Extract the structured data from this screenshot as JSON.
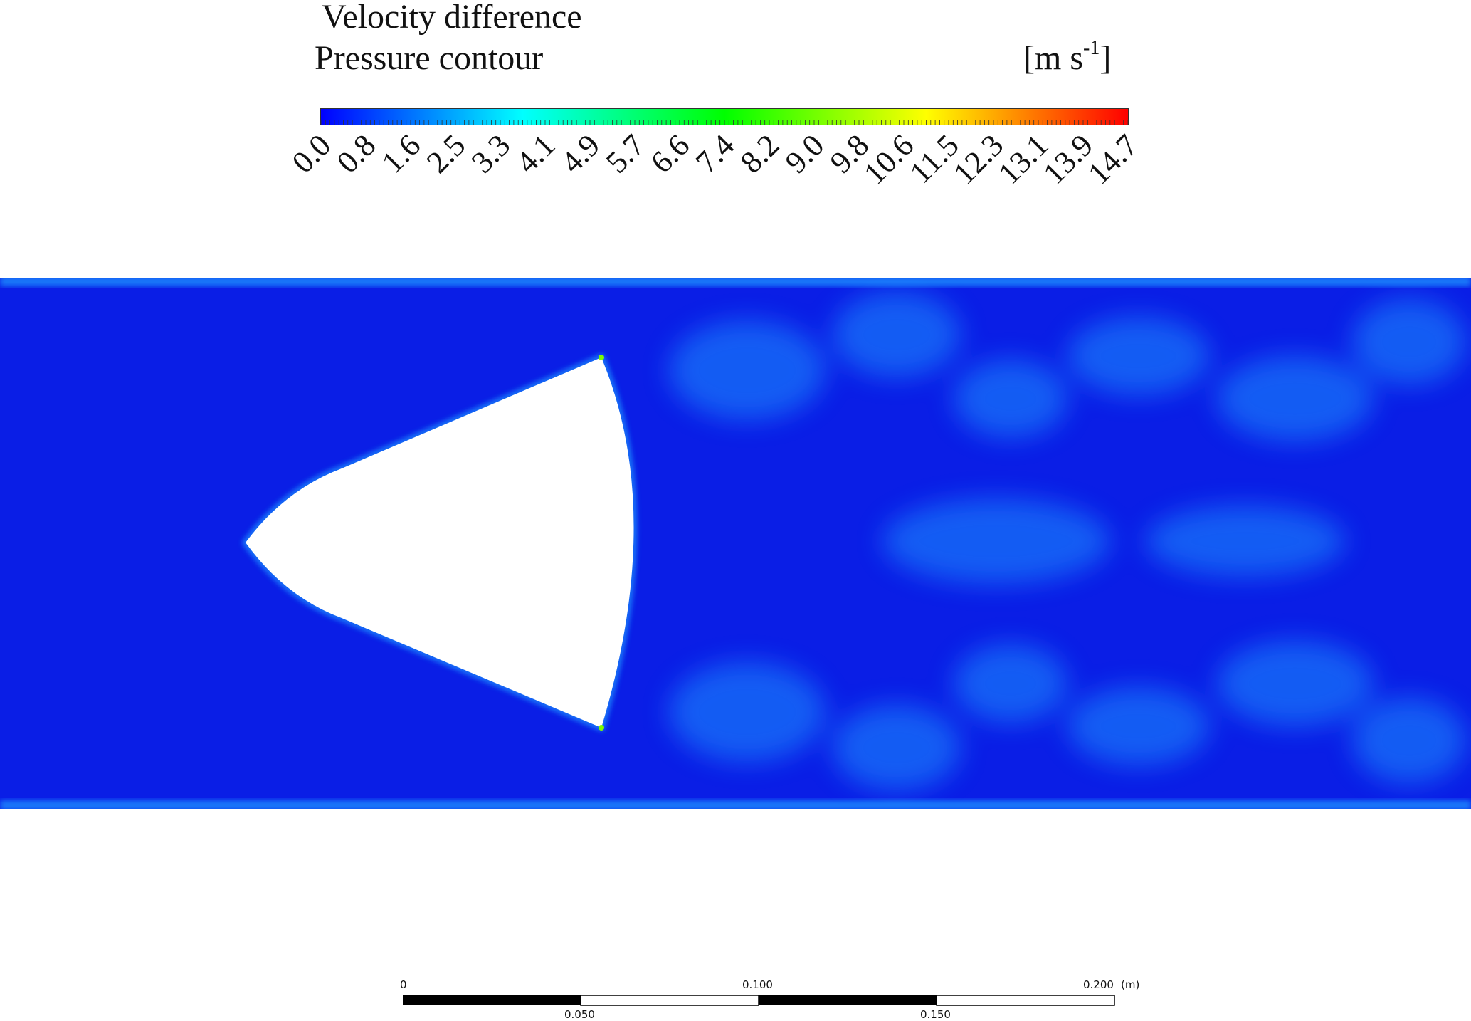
{
  "legend": {
    "title_line1": "Velocity difference",
    "title_line2": "Pressure contour",
    "unit_prefix": "[m s",
    "unit_exponent": "-1",
    "unit_suffix": "]",
    "ticks": [
      "0.0",
      "0.8",
      "1.6",
      "2.5",
      "3.3",
      "4.1",
      "4.9",
      "5.7",
      "6.6",
      "7.4",
      "8.2",
      "9.0",
      "9.8",
      "10.6",
      "11.5",
      "12.3",
      "13.1",
      "13.9",
      "14.7"
    ],
    "colormap": [
      "#0000ff",
      "#00ffff",
      "#00ff00",
      "#ffff00",
      "#ff0000"
    ]
  },
  "field": {
    "background_color": "#0a1ee6",
    "highlight_color": "#1e90ff",
    "obstacle_color": "#ffffff"
  },
  "scale_bar": {
    "top_labels": [
      "0",
      "0.100",
      "0.200"
    ],
    "bottom_labels": [
      "0.050",
      "0.150"
    ],
    "unit": "(m)"
  }
}
